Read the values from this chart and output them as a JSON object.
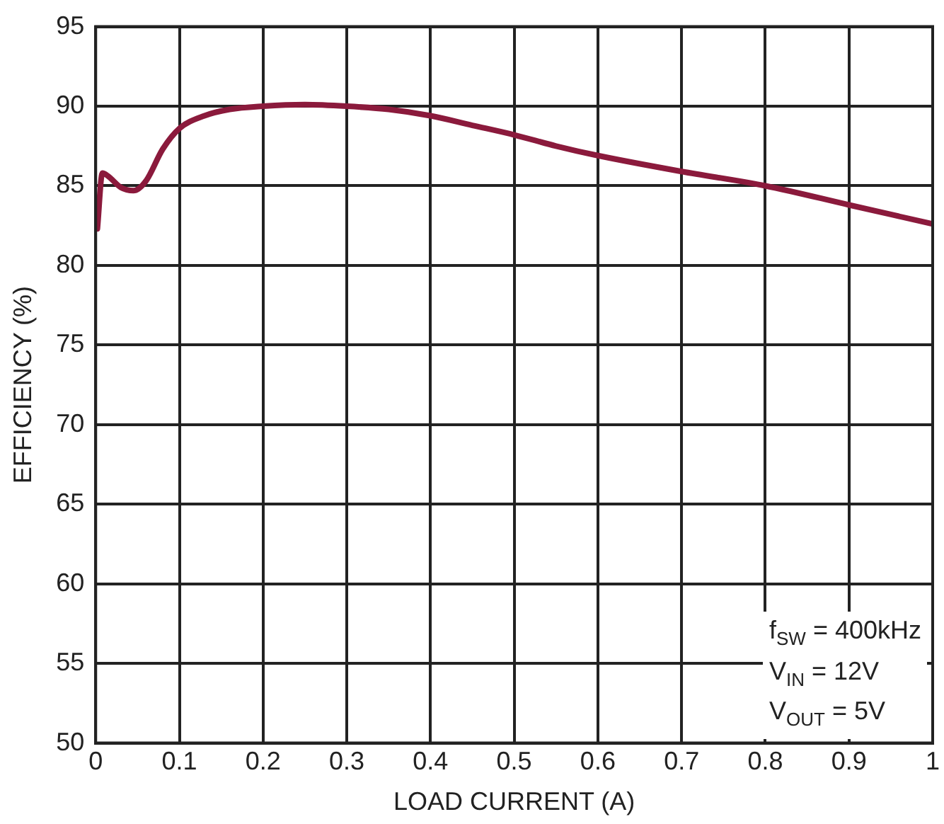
{
  "chart_data": {
    "type": "line",
    "xlabel": "LOAD CURRENT (A)",
    "ylabel": "EFFICIENCY (%)",
    "x": [
      0.002,
      0.008,
      0.015,
      0.03,
      0.045,
      0.06,
      0.08,
      0.1,
      0.13,
      0.16,
      0.2,
      0.25,
      0.3,
      0.35,
      0.4,
      0.45,
      0.5,
      0.55,
      0.6,
      0.7,
      0.8,
      0.9,
      1.0
    ],
    "series": [
      {
        "color": "#8b1a3c",
        "values": [
          82.3,
          85.8,
          85.6,
          84.9,
          84.7,
          85.3,
          87.3,
          88.6,
          89.4,
          89.8,
          90.0,
          90.1,
          90.0,
          89.8,
          89.4,
          88.8,
          88.2,
          87.5,
          86.9,
          85.9,
          85.0,
          83.8,
          82.6
        ]
      }
    ],
    "xlim": [
      0,
      1
    ],
    "xticks": [
      0,
      0.1,
      0.2,
      0.3,
      0.4,
      0.5,
      0.6,
      0.7,
      0.8,
      0.9,
      1
    ],
    "ylim": [
      50,
      95
    ],
    "yticks": [
      50,
      55,
      60,
      65,
      70,
      75,
      80,
      85,
      90,
      95
    ],
    "grid": true,
    "legend": false,
    "marker": "none",
    "line_style": "solid",
    "annotations": [
      "f$_{SW}$ = 400kHz",
      "V$_{IN}$ = 12V",
      "V$_{OUT}$ = 5V"
    ]
  }
}
